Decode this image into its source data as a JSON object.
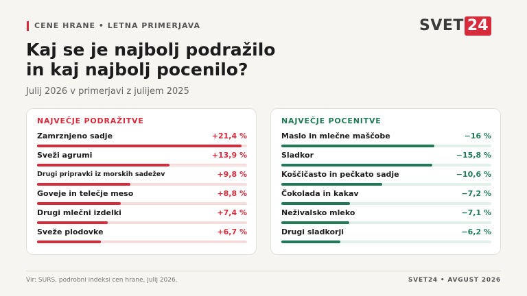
{
  "header": {
    "kicker": "CENE HRANE • LETNA PRIMERJAVA",
    "title_line1": "Kaj se je najbolj podražilo",
    "title_line2": "in kaj najbolj pocenilo?",
    "subtitle": "Julij 2026 v primerjavi z julijem 2025"
  },
  "logo": {
    "word": "SVET",
    "number": "24",
    "accent_color": "#d62b3a"
  },
  "chart_data": [
    {
      "type": "bar",
      "title": "NAJVEČJE PODRAŽITVE",
      "color": "#d62b3a",
      "track_color": "#f7dcde",
      "categories": [
        "Zamrznjeno sadje",
        "Sveži agrumi",
        "Drugi pripravki iz morskih sadežev",
        "Goveje in telečje meso",
        "Drugi mlečni izdelki",
        "Sveže plodovke"
      ],
      "values": [
        21.4,
        13.9,
        9.8,
        8.8,
        7.4,
        6.7
      ],
      "value_labels": [
        "+21,4 %",
        "+13,9 %",
        "+9,8 %",
        "+8,8 %",
        "+7,4 %",
        "+6,7 %"
      ],
      "unit": "%"
    },
    {
      "type": "bar",
      "title": "NAJVEČJE POCENITVE",
      "color": "#1f7a55",
      "track_color": "#e2f0ea",
      "categories": [
        "Maslo in mlečne maščobe",
        "Sladkor",
        "Koščičasto in pečkato sadje",
        "Čokolada in kakav",
        "Neživalsko mleko",
        "Drugi sladkorji"
      ],
      "values": [
        -16,
        -15.8,
        -10.6,
        -7.2,
        -7.1,
        -6.2
      ],
      "value_labels": [
        "−16 %",
        "−15,8 %",
        "−10,6 %",
        "−7,2 %",
        "−7,1 %",
        "−6,2 %"
      ],
      "unit": "%"
    }
  ],
  "footer": {
    "source": "Vir: SURS, podrobni indeksi cen hrane, julij 2026.",
    "credit": "SVET24 • AVGUST 2026"
  }
}
